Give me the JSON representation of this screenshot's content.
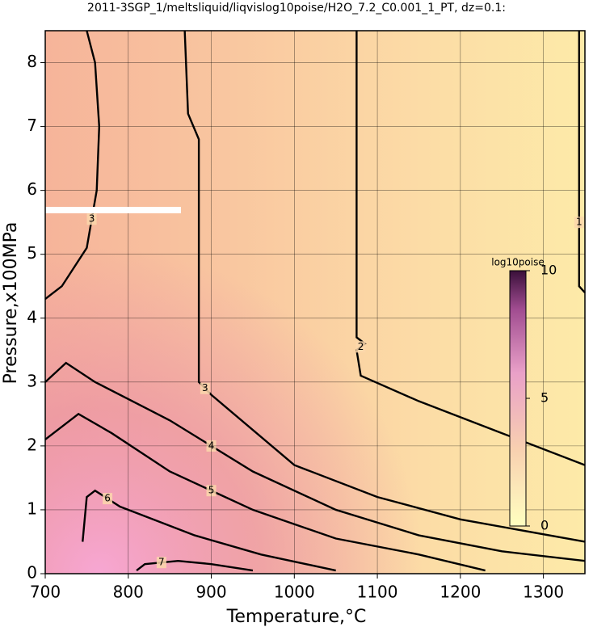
{
  "chart_data": {
    "type": "contour",
    "title": "2011-3SGP_1/meltsliquid/liqvislog10poise/H2O_7.2_C0.001_1_PT, dz=0.1:",
    "x_label": "Temperature,°C",
    "y_label": "Pressure,x100MPa",
    "xlim": [
      700,
      1350
    ],
    "ylim": [
      0,
      8.5
    ],
    "xticks": [
      700,
      800,
      900,
      1000,
      1100,
      1200,
      1300
    ],
    "yticks": [
      0,
      1,
      2,
      3,
      4,
      5,
      6,
      7,
      8
    ],
    "grid": true,
    "colorbar": {
      "label": "log10poise",
      "lim": [
        0,
        10
      ],
      "ticks": [
        0,
        5,
        10
      ]
    },
    "contours": [
      {
        "level": 1,
        "x": [
          1343,
          1343,
          1343,
          1350
        ],
        "y": [
          8.5,
          6.5,
          4.5,
          4.4
        ]
      },
      {
        "level": 2,
        "x": [
          1075,
          1075,
          1075,
          1085,
          1075,
          1080,
          1150,
          1250,
          1350
        ],
        "y": [
          8.5,
          6.0,
          3.7,
          3.6,
          3.5,
          3.1,
          2.7,
          2.2,
          1.7
        ]
      },
      {
        "level": 3,
        "x": [
          868,
          872,
          885,
          885,
          900,
          1000,
          1100,
          1200,
          1350
        ],
        "y": [
          8.5,
          7.2,
          6.8,
          3.0,
          2.8,
          1.7,
          1.2,
          0.85,
          0.5
        ]
      },
      {
        "level": 3,
        "x": [
          750,
          760,
          765,
          762,
          750,
          720,
          705,
          700
        ],
        "y": [
          8.5,
          8.0,
          7.0,
          6.0,
          5.1,
          4.5,
          4.35,
          4.3
        ]
      },
      {
        "level": 4,
        "x": [
          700,
          725,
          760,
          850,
          950,
          1050,
          1150,
          1250,
          1350
        ],
        "y": [
          3.0,
          3.3,
          3.0,
          2.4,
          1.6,
          1.0,
          0.6,
          0.35,
          0.2
        ]
      },
      {
        "level": 5,
        "x": [
          700,
          740,
          780,
          850,
          950,
          1050,
          1150,
          1230
        ],
        "y": [
          2.1,
          2.5,
          2.2,
          1.6,
          1.0,
          0.55,
          0.3,
          0.05
        ]
      },
      {
        "level": 6,
        "x": [
          745,
          750,
          760,
          790,
          880,
          960,
          1050
        ],
        "y": [
          0.5,
          1.2,
          1.3,
          1.05,
          0.6,
          0.3,
          0.05
        ]
      },
      {
        "level": 7,
        "x": [
          810,
          820,
          860,
          900,
          950
        ],
        "y": [
          0.05,
          0.15,
          0.2,
          0.15,
          0.05
        ]
      }
    ]
  }
}
